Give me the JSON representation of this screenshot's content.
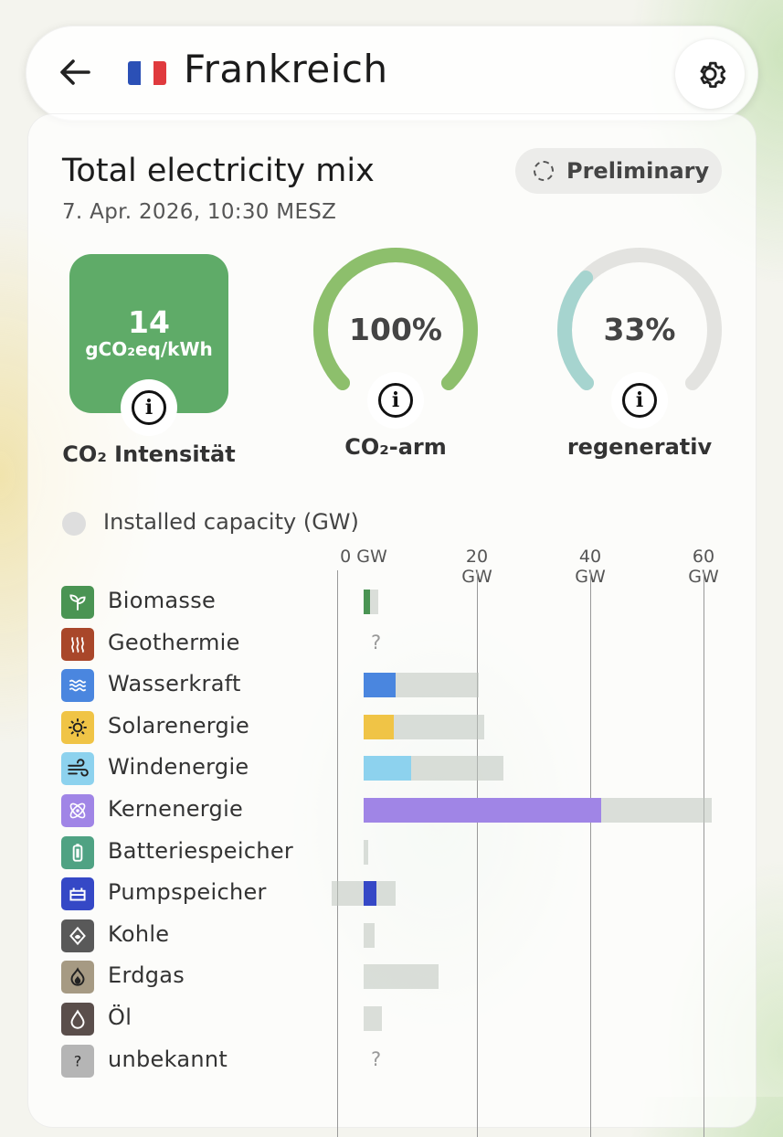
{
  "header": {
    "country": "Frankreich",
    "back_icon": "arrow-left-icon",
    "settings_icon": "gear-icon",
    "flag_colors": [
      "#2b50b6",
      "#ffffff",
      "#e03a3e"
    ]
  },
  "card": {
    "title": "Total electricity mix",
    "datetime": "7. Apr. 2026, 10:30 MESZ",
    "status_badge": "Preliminary"
  },
  "metrics": {
    "co2_intensity": {
      "value": "14",
      "unit": "gCO₂eq/kWh",
      "label": "CO₂ Intensität",
      "color": "#5fab68"
    },
    "low_carbon": {
      "value": "100%",
      "fraction": 1.0,
      "label": "CO₂-arm",
      "color": "#8dbf6c"
    },
    "renewable": {
      "value": "33%",
      "fraction": 0.33,
      "label": "regenerativ",
      "color": "#a6d4cf"
    }
  },
  "capacity": {
    "label": "Installed capacity (GW)",
    "axis_ticks": [
      "0 GW",
      "20 GW",
      "40 GW",
      "60 GW"
    ],
    "axis_values": [
      0,
      20,
      40,
      60
    ]
  },
  "sources": [
    {
      "name": "Biomasse",
      "icon": "leaf-icon",
      "color": "#4a9453",
      "production_gw": 1.2,
      "capacity_gw": 2.6
    },
    {
      "name": "Geothermie",
      "icon": "geothermal-icon",
      "color": "#a9472a",
      "unknown": "?"
    },
    {
      "name": "Wasserkraft",
      "icon": "water-icon",
      "color": "#4a86df",
      "production_gw": 5.7,
      "capacity_gw": 20.3
    },
    {
      "name": "Solarenergie",
      "icon": "sun-icon",
      "color": "#f0c446",
      "production_gw": 5.4,
      "capacity_gw": 21.3
    },
    {
      "name": "Windenergie",
      "icon": "wind-icon",
      "color": "#8dd2ee",
      "production_gw": 8.4,
      "capacity_gw": 24.7
    },
    {
      "name": "Kernenergie",
      "icon": "atom-icon",
      "color": "#a085e6",
      "production_gw": 42.0,
      "capacity_gw": 61.4
    },
    {
      "name": "Batteriespeicher",
      "icon": "battery-icon",
      "color": "#4fa283",
      "production_gw": 0,
      "capacity_gw": 0.8
    },
    {
      "name": "Pumpspeicher",
      "icon": "pump-storage-icon",
      "color": "#3548c6",
      "production_gw": 2.2,
      "capacity_gw": 5.7,
      "storage_gw": -5.6
    },
    {
      "name": "Kohle",
      "icon": "coal-icon",
      "color": "#595959",
      "production_gw": 0,
      "capacity_gw": 2.0
    },
    {
      "name": "Erdgas",
      "icon": "gas-flame-icon",
      "color": "#a69a83",
      "production_gw": 0,
      "capacity_gw": 13.3
    },
    {
      "name": "Öl",
      "icon": "oil-drop-icon",
      "color": "#5a4e4b",
      "production_gw": 0,
      "capacity_gw": 3.3
    },
    {
      "name": "unbekannt",
      "icon": "question-icon",
      "color": "#b5b5b5",
      "unknown": "?"
    }
  ]
}
